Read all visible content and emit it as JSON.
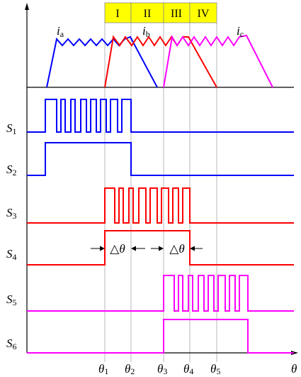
{
  "colors": {
    "phase_a": "#0000ff",
    "phase_b": "#ff0000",
    "phase_c": "#ff00ff",
    "phase_box": "#ffff00",
    "axis": "#000000",
    "guide": "#888888"
  },
  "phase_labels": [
    "I",
    "II",
    "III",
    "IV"
  ],
  "current_labels": [
    {
      "main": "i",
      "sub": "a"
    },
    {
      "main": "i",
      "sub": "b"
    },
    {
      "main": "i",
      "sub": "c"
    }
  ],
  "switch_labels": [
    {
      "main": "S",
      "sub": "1"
    },
    {
      "main": "S",
      "sub": "2"
    },
    {
      "main": "S",
      "sub": "3"
    },
    {
      "main": "S",
      "sub": "4"
    },
    {
      "main": "S",
      "sub": "5"
    },
    {
      "main": "S",
      "sub": "6"
    }
  ],
  "theta_labels": [
    {
      "main": "θ",
      "sub": "1"
    },
    {
      "main": "θ",
      "sub": "2"
    },
    {
      "main": "θ",
      "sub": "3"
    },
    {
      "main": "θ",
      "sub": "4"
    },
    {
      "main": "θ",
      "sub": "5"
    }
  ],
  "axis_label": "θ",
  "delta_labels": [
    "△θ",
    "△θ"
  ]
}
